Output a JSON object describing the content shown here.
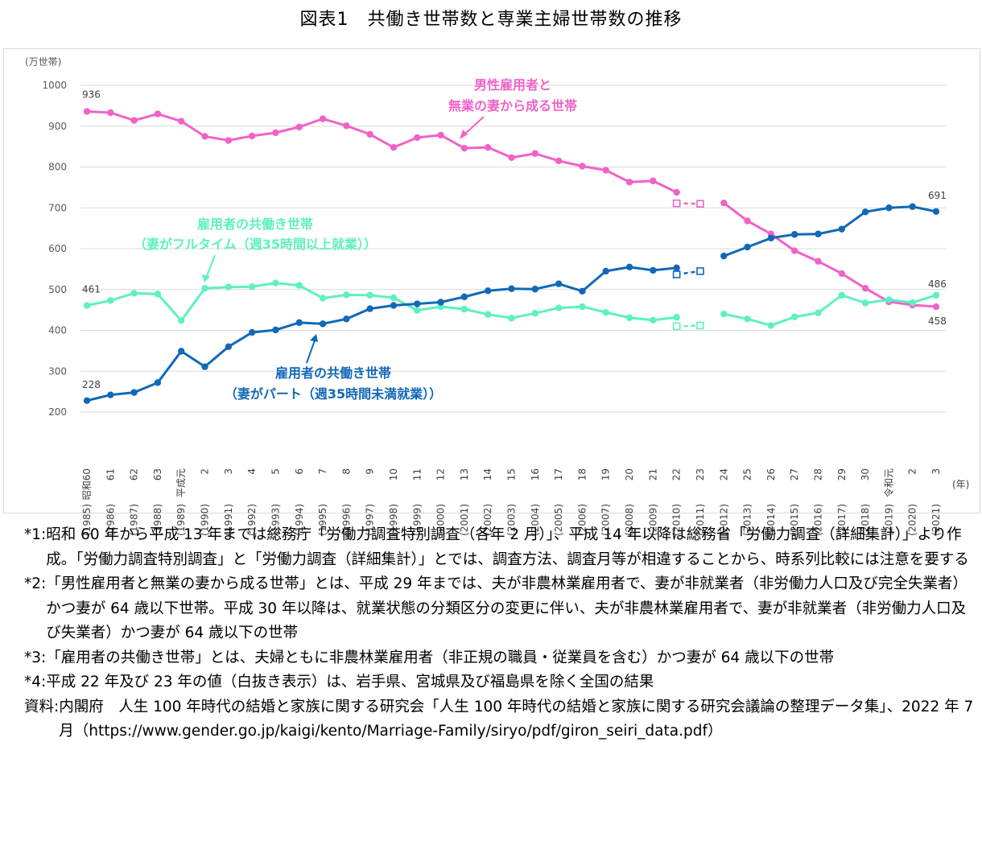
{
  "title": "図表1　共働き世帯数と専業主婦世帯数の推移",
  "chart_data": {
    "type": "line",
    "title": "図表1　共働き世帯数と専業主婦世帯数の推移",
    "ylabel": "(万世帯)",
    "xlabel": "(年)",
    "ylim": [
      200,
      1000
    ],
    "yticks": [
      200,
      300,
      400,
      500,
      600,
      700,
      800,
      900,
      1000
    ],
    "grid": true,
    "era_labels": [
      "昭和60",
      "61",
      "62",
      "63",
      "平成元",
      "2",
      "3",
      "4",
      "5",
      "6",
      "7",
      "8",
      "9",
      "10",
      "11",
      "12",
      "13",
      "14",
      "15",
      "16",
      "17",
      "18",
      "19",
      "20",
      "21",
      "22",
      "23",
      "24",
      "25",
      "26",
      "27",
      "28",
      "29",
      "30",
      "令和元",
      "2",
      "3"
    ],
    "years": [
      "(1985)",
      "(1986)",
      "(1987)",
      "(1988)",
      "(1989)",
      "(1990)",
      "(1991)",
      "(1992)",
      "(1993)",
      "(1994)",
      "(1995)",
      "(1996)",
      "(1997)",
      "(1998)",
      "(1999)",
      "(2000)",
      "(2001)",
      "(2002)",
      "(2003)",
      "(2004)",
      "(2005)",
      "(2006)",
      "(2007)",
      "(2008)",
      "(2009)",
      "(2010)",
      "(2011)",
      "(2012)",
      "(2013)",
      "(2014)",
      "(2015)",
      "(2016)",
      "(2017)",
      "(2018)",
      "(2019)",
      "(2020)",
      "(2021)"
    ],
    "series": [
      {
        "name": "男性雇用者と無業の妻から成る世帯",
        "label_lines": [
          "男性雇用者と",
          "無業の妻から成る世帯"
        ],
        "color": "#f062c8",
        "values": [
          936,
          933,
          914,
          930,
          912,
          875,
          865,
          876,
          884,
          898,
          918,
          901,
          880,
          848,
          872,
          878,
          846,
          848,
          823,
          833,
          815,
          802,
          792,
          763,
          766,
          738,
          null,
          712,
          668,
          636,
          595,
          569,
          539,
          503,
          470,
          462,
          458
        ],
        "excluded_values": {
          "22": 711,
          "23": 710
        },
        "labels": {
          "0": "936",
          "36": "458"
        }
      },
      {
        "name": "雇用者の共働き世帯（妻がフルタイム（週35時間以上就業））",
        "label_lines": [
          "雇用者の共働き世帯",
          "（妻がフルタイム（週35時間以上就業））"
        ],
        "color": "#5ef0c0",
        "values": [
          461,
          473,
          491,
          489,
          424,
          503,
          506,
          507,
          516,
          510,
          479,
          487,
          486,
          480,
          449,
          458,
          452,
          439,
          430,
          442,
          455,
          458,
          444,
          431,
          425,
          432,
          null,
          440,
          428,
          412,
          433,
          443,
          486,
          467,
          475,
          468,
          486
        ],
        "excluded_values": {
          "22": 410,
          "23": 412
        },
        "labels": {
          "0": "461",
          "36": "486"
        }
      },
      {
        "name": "雇用者の共働き世帯（妻がパート（週35時間未満就業））",
        "label_lines": [
          "雇用者の共働き世帯",
          "（妻がパート（週35時間未満就業））"
        ],
        "color": "#1168b8",
        "values": [
          228,
          242,
          248,
          272,
          349,
          311,
          360,
          395,
          401,
          419,
          416,
          428,
          453,
          461,
          465,
          469,
          482,
          497,
          502,
          501,
          514,
          496,
          545,
          555,
          547,
          553,
          null,
          582,
          604,
          626,
          635,
          636,
          648,
          690,
          700,
          703,
          691
        ],
        "excluded_values": {
          "22": 537,
          "23": 545
        },
        "labels": {
          "0": "228",
          "36": "691"
        }
      }
    ]
  },
  "notes": [
    {
      "label": "*1:",
      "text": "昭和 60 年から平成 13 年までは総務庁「労働力調査特別調査（各年 2 月）」、平成 14 年以降は総務省「労働力調査（詳細集計）」より作成。「労働力調査特別調査」と「労働力調査（詳細集計）」とでは、調査方法、調査月等が相違することから、時系列比較には注意を要する"
    },
    {
      "label": "*2:",
      "text": "「男性雇用者と無業の妻から成る世帯」とは、平成 29 年までは、夫が非農林業雇用者で、妻が非就業者（非労働力人口及び完全失業者）かつ妻が 64 歳以下世帯。平成 30 年以降は、就業状態の分類区分の変更に伴い、夫が非農林業雇用者で、妻が非就業者（非労働力人口及び失業者）かつ妻が 64 歳以下の世帯"
    },
    {
      "label": "*3:",
      "text": "「雇用者の共働き世帯」とは、夫婦ともに非農林業雇用者（非正規の職員・従業員を含む）かつ妻が 64 歳以下の世帯"
    },
    {
      "label": "*4:",
      "text": "平成 22 年及び 23 年の値（白抜き表示）は、岩手県、宮城県及び福島県を除く全国の結果"
    },
    {
      "label": "資料:",
      "text": "内閣府　人生 100 年時代の結婚と家族に関する研究会「人生 100 年時代の結婚と家族に関する研究会議論の整理データ集」、2022 年 7 月（https://www.gender.go.jp/kaigi/kento/Marriage-Family/siryo/pdf/giron_seiri_data.pdf）"
    }
  ]
}
